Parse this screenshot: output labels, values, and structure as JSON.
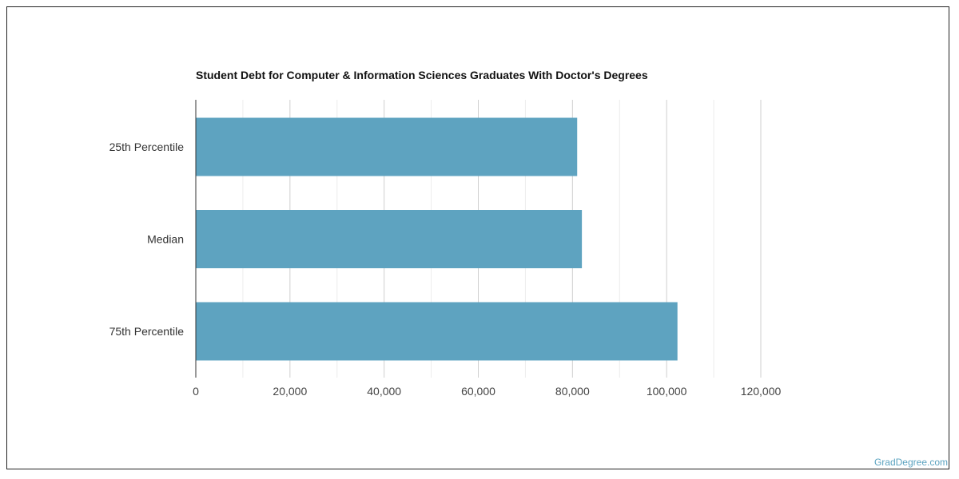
{
  "chart_data": {
    "type": "bar",
    "orientation": "horizontal",
    "title": "Student Debt for Computer & Information Sciences Graduates With Doctor's Degrees",
    "categories": [
      "25th Percentile",
      "Median",
      "75th Percentile"
    ],
    "values": [
      81000,
      82000,
      102300
    ],
    "xlim": [
      0,
      120000
    ],
    "xticks": [
      0,
      20000,
      40000,
      60000,
      80000,
      100000,
      120000
    ],
    "xtick_labels": [
      "0",
      "20,000",
      "40,000",
      "60,000",
      "80,000",
      "100,000",
      "120,000"
    ],
    "grid": true,
    "legend": "none",
    "bar_color": "#5ea3c0"
  },
  "watermark": "GradDegree.com"
}
